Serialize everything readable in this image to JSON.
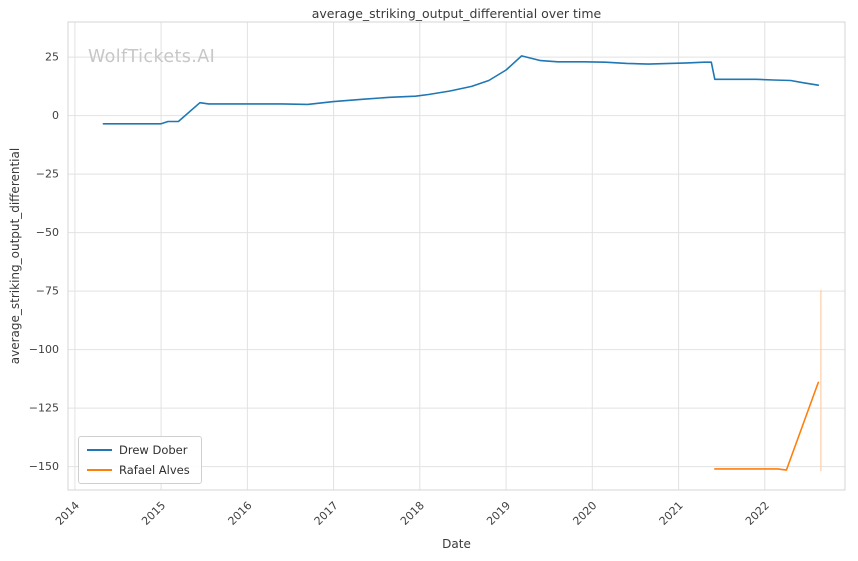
{
  "chart_data": {
    "type": "line",
    "title": "average_striking_output_differential over time",
    "xlabel": "Date",
    "ylabel": "average_striking_output_differential",
    "watermark": "WolfTickets.AI",
    "grid": true,
    "legend_position": "lower left",
    "xlim": [
      2013.92,
      2022.93
    ],
    "ylim": [
      -160,
      40
    ],
    "x_ticks": [
      2014,
      2015,
      2016,
      2017,
      2018,
      2019,
      2020,
      2021,
      2022
    ],
    "x_tick_labels": [
      "2014",
      "2015",
      "2016",
      "2017",
      "2018",
      "2019",
      "2020",
      "2021",
      "2022"
    ],
    "y_ticks": [
      25,
      0,
      -25,
      -50,
      -75,
      -100,
      -125,
      -150
    ],
    "y_tick_labels": [
      "25",
      "0",
      "−25",
      "−50",
      "−75",
      "−100",
      "−125",
      "−150"
    ],
    "series": [
      {
        "name": "Drew Dober",
        "color": "#1f77b4",
        "points": [
          [
            2014.33,
            -3.5
          ],
          [
            2014.75,
            -3.5
          ],
          [
            2015.0,
            -3.5
          ],
          [
            2015.08,
            -2.5
          ],
          [
            2015.2,
            -2.5
          ],
          [
            2015.45,
            5.5
          ],
          [
            2015.55,
            5
          ],
          [
            2015.8,
            5
          ],
          [
            2016.1,
            5
          ],
          [
            2016.4,
            5
          ],
          [
            2016.7,
            4.8
          ],
          [
            2017.0,
            6
          ],
          [
            2017.35,
            7
          ],
          [
            2017.65,
            7.8
          ],
          [
            2017.95,
            8.3
          ],
          [
            2018.1,
            9
          ],
          [
            2018.35,
            10.5
          ],
          [
            2018.6,
            12.5
          ],
          [
            2018.8,
            15
          ],
          [
            2019.0,
            19.5
          ],
          [
            2019.18,
            25.5
          ],
          [
            2019.4,
            23.5
          ],
          [
            2019.6,
            23
          ],
          [
            2019.9,
            23
          ],
          [
            2020.15,
            22.8
          ],
          [
            2020.4,
            22.3
          ],
          [
            2020.65,
            22
          ],
          [
            2020.9,
            22.3
          ],
          [
            2021.1,
            22.5
          ],
          [
            2021.3,
            22.8
          ],
          [
            2021.38,
            22.8
          ],
          [
            2021.42,
            15.5
          ],
          [
            2021.65,
            15.5
          ],
          [
            2021.9,
            15.5
          ],
          [
            2022.1,
            15.2
          ],
          [
            2022.3,
            15
          ],
          [
            2022.45,
            14
          ],
          [
            2022.62,
            13
          ]
        ]
      },
      {
        "name": "Rafael Alves",
        "color": "#ff7f0e",
        "points": [
          [
            2021.42,
            -151
          ],
          [
            2021.8,
            -151
          ],
          [
            2022.15,
            -151
          ],
          [
            2022.25,
            -151.5
          ],
          [
            2022.62,
            -114
          ]
        ]
      }
    ],
    "error_bar": {
      "x": 2022.65,
      "y_top": -74.5,
      "y_bottom": -152,
      "color": "#ffcda4"
    }
  }
}
